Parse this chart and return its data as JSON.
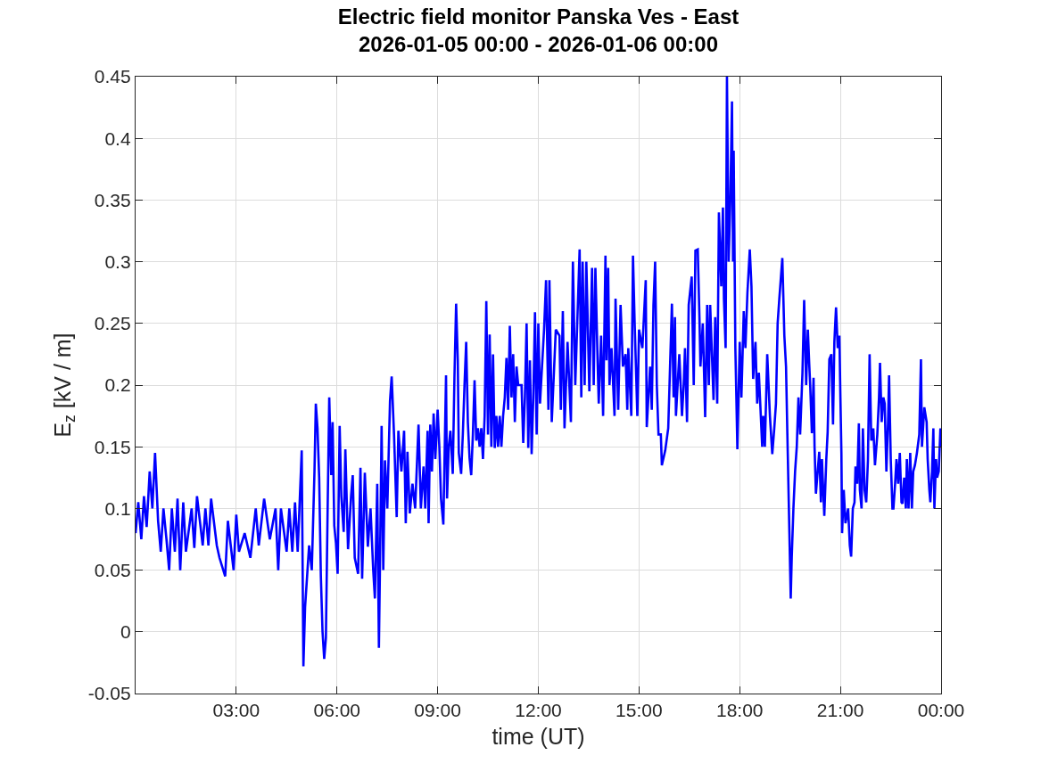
{
  "chart_data": {
    "type": "line",
    "title": "Electric field monitor Panska Ves - East",
    "subtitle": "2026-01-05 00:00 - 2026-01-06 00:00",
    "xlabel": "time (UT)",
    "ylabel": "E$_{z}$ [kV / m]",
    "x": [
      0.0,
      0.08,
      0.17,
      0.25,
      0.33,
      0.42,
      0.5,
      0.58,
      0.67,
      0.75,
      0.83,
      0.92,
      1.0,
      1.08,
      1.17,
      1.25,
      1.33,
      1.42,
      1.5,
      1.67,
      1.75,
      1.83,
      2.0,
      2.08,
      2.17,
      2.25,
      2.42,
      2.5,
      2.67,
      2.75,
      2.92,
      3.0,
      3.08,
      3.25,
      3.42,
      3.58,
      3.67,
      3.83,
      4.0,
      4.17,
      4.25,
      4.33,
      4.5,
      4.58,
      4.67,
      4.75,
      4.83,
      4.95,
      5.0,
      5.05,
      5.17,
      5.25,
      5.33,
      5.37,
      5.42,
      5.47,
      5.52,
      5.57,
      5.62,
      5.67,
      5.72,
      5.77,
      5.83,
      5.87,
      5.92,
      5.97,
      6.02,
      6.08,
      6.13,
      6.2,
      6.25,
      6.33,
      6.42,
      6.47,
      6.53,
      6.63,
      6.7,
      6.75,
      6.83,
      6.92,
      7.0,
      7.08,
      7.13,
      7.2,
      7.25,
      7.28,
      7.33,
      7.38,
      7.43,
      7.5,
      7.58,
      7.63,
      7.7,
      7.78,
      7.83,
      7.92,
      8.0,
      8.05,
      8.1,
      8.17,
      8.25,
      8.33,
      8.43,
      8.5,
      8.58,
      8.63,
      8.7,
      8.73,
      8.78,
      8.83,
      8.88,
      8.93,
      9.0,
      9.05,
      9.1,
      9.17,
      9.25,
      9.28,
      9.33,
      9.38,
      9.45,
      9.5,
      9.55,
      9.6,
      9.63,
      9.7,
      9.75,
      9.8,
      9.85,
      9.9,
      9.95,
      10.0,
      10.05,
      10.1,
      10.15,
      10.2,
      10.25,
      10.3,
      10.35,
      10.4,
      10.45,
      10.5,
      10.55,
      10.6,
      10.65,
      10.7,
      10.75,
      10.8,
      10.85,
      10.9,
      10.95,
      11.0,
      11.05,
      11.1,
      11.15,
      11.2,
      11.25,
      11.3,
      11.35,
      11.4,
      11.5,
      11.55,
      11.6,
      11.65,
      11.7,
      11.75,
      11.8,
      11.85,
      11.9,
      11.95,
      12.0,
      12.05,
      12.17,
      12.23,
      12.3,
      12.33,
      12.4,
      12.52,
      12.63,
      12.67,
      12.73,
      12.78,
      12.87,
      12.97,
      13.03,
      13.1,
      13.23,
      13.28,
      13.32,
      13.38,
      13.43,
      13.52,
      13.6,
      13.65,
      13.7,
      13.77,
      13.8,
      13.87,
      13.93,
      14.0,
      14.03,
      14.08,
      14.12,
      14.18,
      14.27,
      14.3,
      14.38,
      14.45,
      14.52,
      14.6,
      14.65,
      14.68,
      14.77,
      14.82,
      14.87,
      14.95,
      15.0,
      15.1,
      15.2,
      15.23,
      15.33,
      15.38,
      15.43,
      15.48,
      15.53,
      15.58,
      15.65,
      15.68,
      15.78,
      15.87,
      15.98,
      16.03,
      16.07,
      16.1,
      16.2,
      16.28,
      16.33,
      16.37,
      16.43,
      16.48,
      16.57,
      16.63,
      16.68,
      16.75,
      16.8,
      16.83,
      16.9,
      16.97,
      17.03,
      17.08,
      17.12,
      17.22,
      17.27,
      17.33,
      17.38,
      17.45,
      17.5,
      17.53,
      17.58,
      17.62,
      17.67,
      17.72,
      17.77,
      17.8,
      17.82,
      17.87,
      17.9,
      17.93,
      18.0,
      18.05,
      18.12,
      18.17,
      18.23,
      18.3,
      18.35,
      18.4,
      18.47,
      18.52,
      18.57,
      18.62,
      18.67,
      18.7,
      18.75,
      18.82,
      18.9,
      18.97,
      19.03,
      19.08,
      19.13,
      19.18,
      19.27,
      19.33,
      19.38,
      19.42,
      19.45,
      19.48,
      19.52,
      19.55,
      19.6,
      19.65,
      19.7,
      19.75,
      19.8,
      19.87,
      19.92,
      19.98,
      20.03,
      20.07,
      20.1,
      20.15,
      20.2,
      20.23,
      20.27,
      20.37,
      20.42,
      20.45,
      20.52,
      20.58,
      20.62,
      20.67,
      20.73,
      20.78,
      20.82,
      20.87,
      20.92,
      20.97,
      21.0,
      21.03,
      21.05,
      21.1,
      21.15,
      21.23,
      21.28,
      21.32,
      21.37,
      21.42,
      21.45,
      21.5,
      21.55,
      21.58,
      21.63,
      21.67,
      21.72,
      21.77,
      21.82,
      21.87,
      21.92,
      21.98,
      22.03,
      22.1,
      22.15,
      22.18,
      22.23,
      22.28,
      22.32,
      22.37,
      22.42,
      22.45,
      22.5,
      22.55,
      22.58,
      22.63,
      22.67,
      22.72,
      22.77,
      22.82,
      22.85,
      22.9,
      22.95,
      22.98,
      23.03,
      23.08,
      23.13,
      23.17,
      23.22,
      23.28,
      23.35,
      23.4,
      23.43,
      23.5,
      23.57,
      23.6,
      23.65,
      23.68,
      23.73,
      23.77,
      23.8,
      23.85,
      23.88,
      23.93,
      23.98,
      24.0
    ],
    "values": [
      0.08,
      0.105,
      0.075,
      0.11,
      0.085,
      0.13,
      0.1,
      0.145,
      0.09,
      0.065,
      0.1,
      0.075,
      0.05,
      0.1,
      0.065,
      0.108,
      0.05,
      0.105,
      0.065,
      0.1,
      0.068,
      0.11,
      0.07,
      0.1,
      0.07,
      0.108,
      0.07,
      0.06,
      0.045,
      0.09,
      0.05,
      0.095,
      0.065,
      0.08,
      0.06,
      0.1,
      0.07,
      0.108,
      0.075,
      0.1,
      0.05,
      0.1,
      0.065,
      0.1,
      0.065,
      0.105,
      0.065,
      0.147,
      -0.028,
      0.02,
      0.07,
      0.05,
      0.13,
      0.185,
      0.165,
      0.125,
      0.045,
      0.0,
      -0.022,
      -0.005,
      0.096,
      0.19,
      0.127,
      0.17,
      0.086,
      0.072,
      0.047,
      0.167,
      0.11,
      0.081,
      0.148,
      0.067,
      0.11,
      0.127,
      0.06,
      0.047,
      0.133,
      0.043,
      0.129,
      0.069,
      0.1,
      0.05,
      0.027,
      0.12,
      -0.013,
      0.05,
      0.167,
      0.05,
      0.139,
      0.1,
      0.187,
      0.207,
      0.16,
      0.093,
      0.163,
      0.13,
      0.163,
      0.088,
      0.146,
      0.096,
      0.12,
      0.1,
      0.168,
      0.1,
      0.134,
      0.1,
      0.163,
      0.088,
      0.168,
      0.13,
      0.177,
      0.14,
      0.18,
      0.15,
      0.108,
      0.087,
      0.208,
      0.108,
      0.15,
      0.163,
      0.128,
      0.206,
      0.266,
      0.22,
      0.145,
      0.128,
      0.16,
      0.2,
      0.235,
      0.17,
      0.141,
      0.127,
      0.16,
      0.204,
      0.155,
      0.165,
      0.15,
      0.165,
      0.14,
      0.175,
      0.268,
      0.16,
      0.241,
      0.15,
      0.225,
      0.149,
      0.175,
      0.15,
      0.175,
      0.15,
      0.175,
      0.19,
      0.222,
      0.18,
      0.248,
      0.19,
      0.225,
      0.17,
      0.215,
      0.2,
      0.2,
      0.153,
      0.19,
      0.25,
      0.149,
      0.22,
      0.144,
      0.19,
      0.259,
      0.16,
      0.25,
      0.185,
      0.245,
      0.285,
      0.18,
      0.285,
      0.17,
      0.245,
      0.24,
      0.18,
      0.26,
      0.165,
      0.235,
      0.17,
      0.3,
      0.2,
      0.31,
      0.19,
      0.3,
      0.2,
      0.3,
      0.195,
      0.295,
      0.2,
      0.295,
      0.215,
      0.185,
      0.24,
      0.175,
      0.305,
      0.22,
      0.295,
      0.2,
      0.23,
      0.175,
      0.27,
      0.18,
      0.265,
      0.215,
      0.225,
      0.18,
      0.23,
      0.175,
      0.305,
      0.25,
      0.175,
      0.245,
      0.23,
      0.285,
      0.166,
      0.215,
      0.18,
      0.265,
      0.3,
      0.2,
      0.16,
      0.16,
      0.135,
      0.147,
      0.165,
      0.266,
      0.19,
      0.255,
      0.175,
      0.225,
      0.175,
      0.2,
      0.23,
      0.17,
      0.265,
      0.288,
      0.2,
      0.309,
      0.31,
      0.255,
      0.215,
      0.25,
      0.174,
      0.265,
      0.2,
      0.265,
      0.188,
      0.255,
      0.185,
      0.34,
      0.28,
      0.344,
      0.27,
      0.23,
      0.45,
      0.3,
      0.35,
      0.43,
      0.3,
      0.39,
      0.23,
      0.19,
      0.148,
      0.235,
      0.19,
      0.26,
      0.23,
      0.275,
      0.31,
      0.28,
      0.205,
      0.235,
      0.185,
      0.21,
      0.18,
      0.15,
      0.175,
      0.15,
      0.225,
      0.175,
      0.144,
      0.165,
      0.185,
      0.25,
      0.27,
      0.303,
      0.24,
      0.215,
      0.16,
      0.12,
      0.08,
      0.027,
      0.06,
      0.1,
      0.13,
      0.15,
      0.19,
      0.16,
      0.21,
      0.269,
      0.2,
      0.245,
      0.218,
      0.2,
      0.161,
      0.206,
      0.15,
      0.112,
      0.146,
      0.105,
      0.14,
      0.094,
      0.14,
      0.162,
      0.221,
      0.225,
      0.168,
      0.235,
      0.263,
      0.23,
      0.24,
      0.19,
      0.145,
      0.08,
      0.115,
      0.088,
      0.1,
      0.07,
      0.061,
      0.1,
      0.105,
      0.134,
      0.12,
      0.169,
      0.115,
      0.1,
      0.165,
      0.115,
      0.105,
      0.139,
      0.225,
      0.155,
      0.165,
      0.135,
      0.16,
      0.19,
      0.218,
      0.17,
      0.19,
      0.185,
      0.13,
      0.17,
      0.208,
      0.14,
      0.1,
      0.1,
      0.12,
      0.14,
      0.12,
      0.145,
      0.105,
      0.104,
      0.125,
      0.1,
      0.14,
      0.1,
      0.145,
      0.1,
      0.13,
      0.135,
      0.145,
      0.16,
      0.221,
      0.15,
      0.182,
      0.17,
      0.14,
      0.115,
      0.105,
      0.13,
      0.165,
      0.1,
      0.14,
      0.125,
      0.13,
      0.165,
      0.15
    ],
    "color": "#0000ff",
    "line_style": "solid",
    "xlim": [
      0,
      24
    ],
    "xticks": [
      {
        "value": 3,
        "label": "03:00"
      },
      {
        "value": 6,
        "label": "06:00"
      },
      {
        "value": 9,
        "label": "09:00"
      },
      {
        "value": 12,
        "label": "12:00"
      },
      {
        "value": 15,
        "label": "15:00"
      },
      {
        "value": 18,
        "label": "18:00"
      },
      {
        "value": 21,
        "label": "21:00"
      },
      {
        "value": 24,
        "label": "00:00"
      }
    ],
    "ylim": [
      -0.05,
      0.45
    ],
    "yticks": [
      -0.05,
      0,
      0.05,
      0.1,
      0.15,
      0.2,
      0.25,
      0.3,
      0.35,
      0.4,
      0.45
    ],
    "grid": true
  }
}
